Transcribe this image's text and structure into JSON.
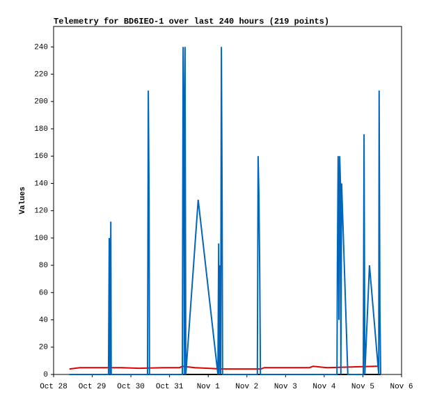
{
  "chart_data": {
    "type": "line",
    "title": "Telemetry for BD6IEO-1 over last 240 hours (219 points)",
    "ylabel": "Values",
    "xlim": [
      0,
      9
    ],
    "ylim": [
      0,
      255
    ],
    "xticks": [
      {
        "value": 0,
        "label": "Oct 28"
      },
      {
        "value": 1,
        "label": "Oct 29"
      },
      {
        "value": 2,
        "label": "Oct 30"
      },
      {
        "value": 3,
        "label": "Oct 31"
      },
      {
        "value": 4,
        "label": "Nov 1"
      },
      {
        "value": 5,
        "label": "Nov 2"
      },
      {
        "value": 6,
        "label": "Nov 3"
      },
      {
        "value": 7,
        "label": "Nov 4"
      },
      {
        "value": 8,
        "label": "Nov 5"
      },
      {
        "value": 9,
        "label": "Nov 6"
      }
    ],
    "yticks": [
      0,
      20,
      40,
      60,
      80,
      100,
      120,
      140,
      160,
      180,
      200,
      220,
      240
    ],
    "series": [
      {
        "color": "#000000",
        "x": [
          0.41,
          8.46
        ],
        "values": [
          0,
          0
        ]
      },
      {
        "color": "#dd0000",
        "x": [
          0.41,
          0.68,
          1.76,
          2.21,
          2.84,
          3.26,
          3.33,
          3.65,
          4.37,
          5.36,
          5.45,
          6.62,
          6.71,
          7.07,
          8.33,
          8.42
        ],
        "values": [
          4,
          5,
          5,
          4.5,
          5,
          5,
          6,
          5,
          4,
          4,
          5,
          5,
          6,
          5,
          6,
          6
        ]
      },
      {
        "color": "#0066bb",
        "x": [
          0.41,
          1.42,
          1.44,
          1.46,
          1.48,
          1.49,
          2.43,
          2.45,
          2.47,
          2.48,
          3.33,
          3.35,
          3.37,
          3.38,
          3.4,
          3.42,
          3.74,
          4.25,
          4.27,
          4.28,
          4.3,
          4.32,
          4.34,
          4.36,
          4.37,
          5.27,
          5.29,
          5.31,
          5.33,
          5.35,
          7.33,
          7.34,
          7.36,
          7.38,
          7.4,
          7.42,
          7.43,
          7.45,
          7.61,
          8.01,
          8.03,
          8.05,
          8.17,
          8.41,
          8.42,
          8.44,
          8.46
        ],
        "values": [
          0,
          0,
          100,
          0,
          112,
          0,
          0,
          208,
          128,
          0,
          0,
          240,
          184,
          0,
          240,
          0,
          128,
          0,
          96,
          0,
          80,
          0,
          240,
          120,
          0,
          0,
          160,
          132,
          80,
          0,
          0,
          80,
          160,
          40,
          160,
          140,
          0,
          140,
          0,
          0,
          176,
          0,
          80,
          0,
          208,
          48,
          0
        ]
      }
    ]
  }
}
